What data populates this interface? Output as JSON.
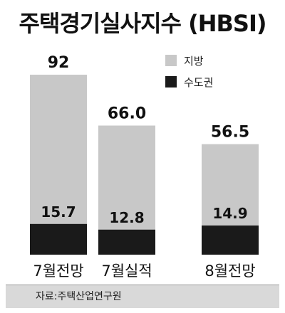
{
  "title": "주택경기실사지수 (HBSI)",
  "legend": [
    {
      "label": "지방",
      "color": "#c8c8c8"
    },
    {
      "label": "수도권",
      "color": "#1a1a1a"
    }
  ],
  "source": "자료:주택산업연구원",
  "chart_data": {
    "type": "bar",
    "title": "주택경기실사지수 (HBSI)",
    "categories": [
      "7월전망",
      "7월실적",
      "8월전망"
    ],
    "series": [
      {
        "name": "지방",
        "color": "#c8c8c8",
        "values": [
          92,
          66.0,
          56.5
        ],
        "labels": [
          "92",
          "66.0",
          "56.5"
        ]
      },
      {
        "name": "수도권",
        "color": "#1a1a1a",
        "values": [
          15.7,
          12.8,
          14.9
        ],
        "labels": [
          "15.7",
          "12.8",
          "14.9"
        ]
      }
    ],
    "grid": false,
    "legend_position": "top-right"
  }
}
